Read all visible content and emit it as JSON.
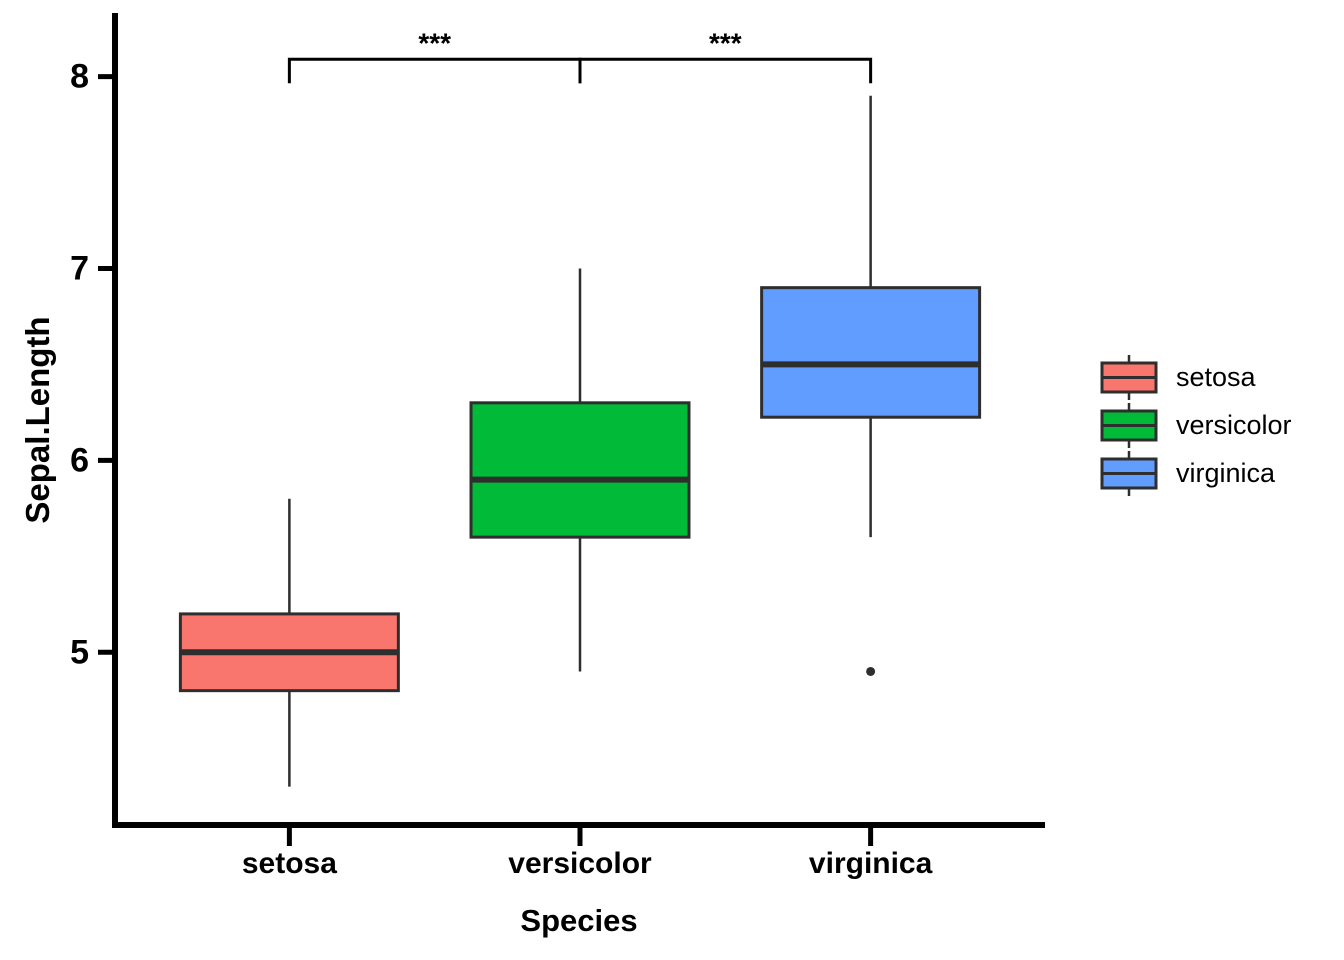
{
  "chart_data": {
    "type": "boxplot",
    "title": "",
    "xlabel": "Species",
    "ylabel": "Sepal.Length",
    "categories": [
      "setosa",
      "versicolor",
      "virginica"
    ],
    "y_ticks": [
      5,
      6,
      7,
      8
    ],
    "ylim": [
      4.1,
      8.3
    ],
    "grid": "off",
    "series": [
      {
        "name": "setosa",
        "color": "#F8766D",
        "whisker_low": 4.3,
        "q1": 4.8,
        "median": 5.0,
        "q3": 5.2,
        "whisker_high": 5.8,
        "outliers": []
      },
      {
        "name": "versicolor",
        "color": "#00BA38",
        "whisker_low": 4.9,
        "q1": 5.6,
        "median": 5.9,
        "q3": 6.3,
        "whisker_high": 7.0,
        "outliers": []
      },
      {
        "name": "virginica",
        "color": "#619CFF",
        "whisker_low": 5.6,
        "q1": 6.225,
        "median": 6.5,
        "q3": 6.9,
        "whisker_high": 7.9,
        "outliers": [
          4.9
        ]
      }
    ],
    "annotations": [
      {
        "label": "***",
        "from": "setosa",
        "to": "versicolor",
        "y": 8.09
      },
      {
        "label": "***",
        "from": "versicolor",
        "to": "virginica",
        "y": 8.09
      }
    ],
    "legend": {
      "position": "right",
      "entries": [
        "setosa",
        "versicolor",
        "virginica"
      ]
    },
    "styles": {
      "axis_color": "#000000",
      "box_border": "#2e2e2e",
      "median_color": "#2e2e2e",
      "whisker_color": "#2e2e2e",
      "outlier_color": "#2e2e2e",
      "bracket_color": "#000000",
      "background": "#ffffff"
    }
  }
}
